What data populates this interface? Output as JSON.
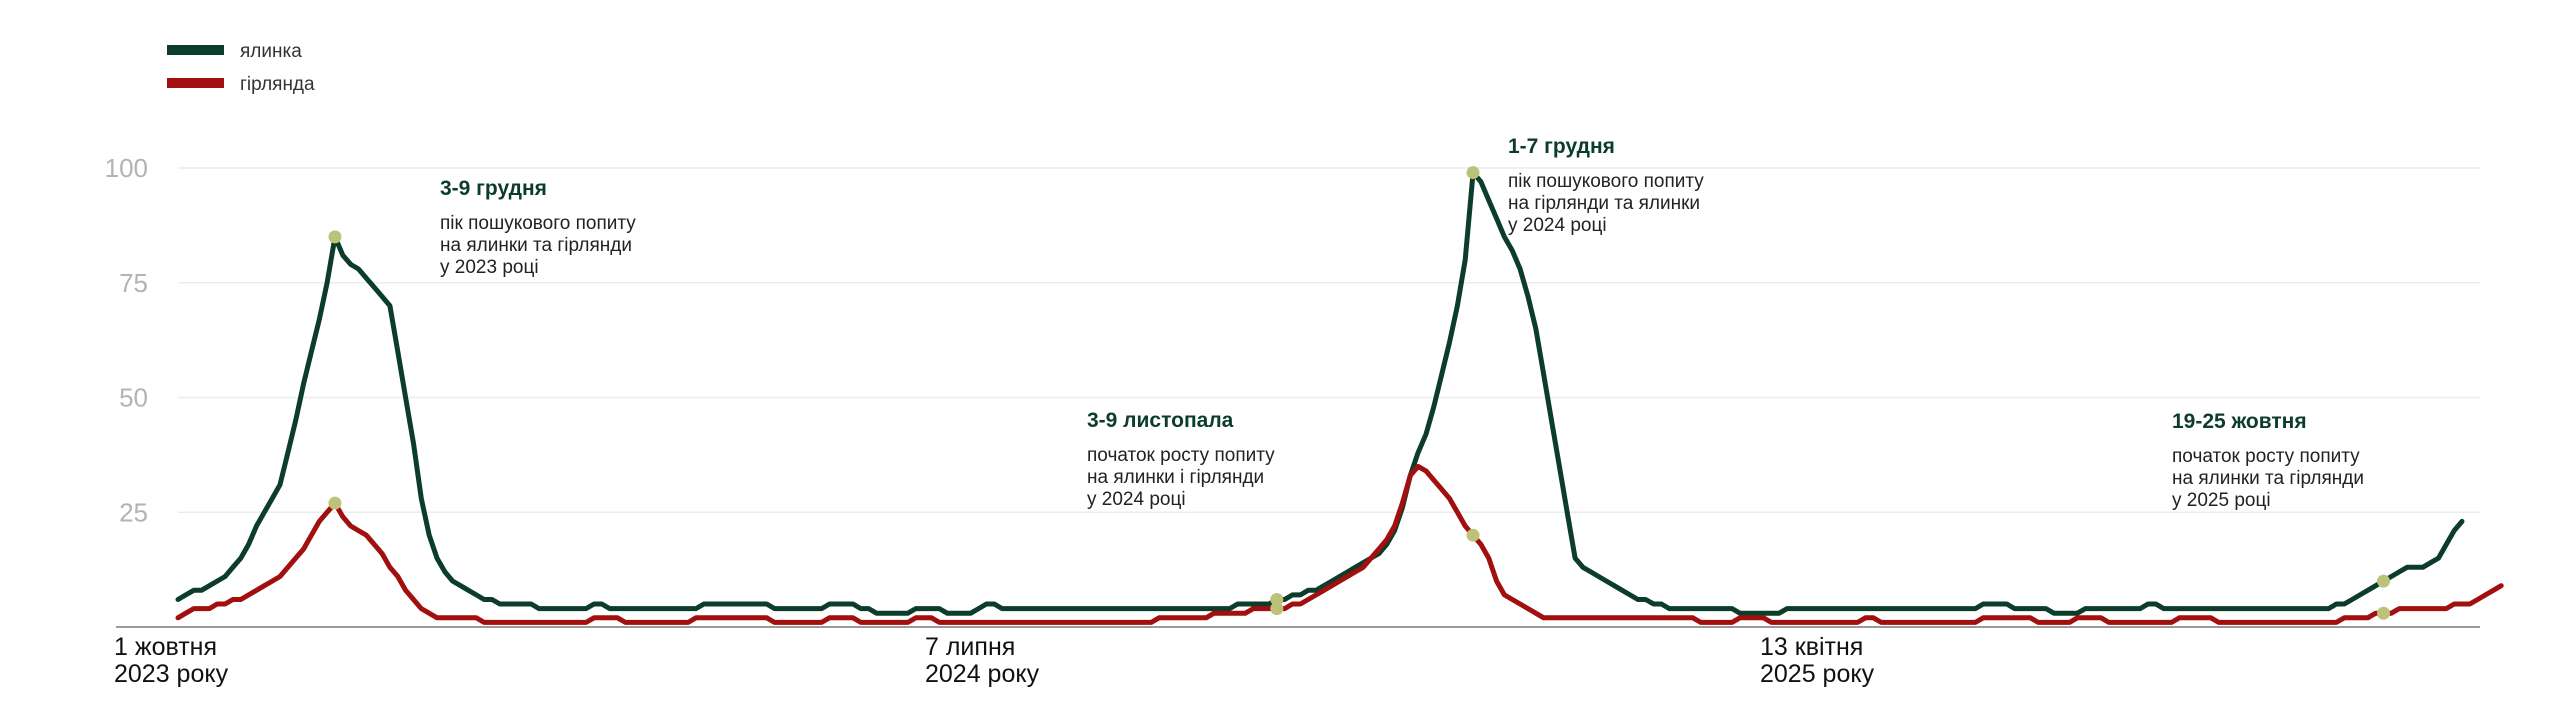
{
  "chart_data": {
    "type": "line",
    "ylim": [
      0,
      100
    ],
    "yticks": [
      "100",
      "75",
      "50",
      "25"
    ],
    "grid": true,
    "legend_position": "top-left",
    "x_start_label": [
      "1 жовтня",
      "2023 року"
    ],
    "x_tick_labels": [
      [
        "1 жовтня",
        "2023 року"
      ],
      [
        "7 липня",
        "2024 року"
      ],
      [
        "13 квітня",
        "2025 року"
      ]
    ],
    "series": [
      {
        "name": "ялинка",
        "color": "#0b3d2a",
        "values": [
          6,
          7,
          8,
          8,
          9,
          10,
          11,
          13,
          15,
          18,
          22,
          25,
          28,
          31,
          38,
          45,
          53,
          60,
          67,
          75,
          85,
          81,
          79,
          78,
          76,
          74,
          72,
          70,
          60,
          50,
          40,
          28,
          20,
          15,
          12,
          10,
          9,
          8,
          7,
          6,
          6,
          5,
          5,
          5,
          5,
          5,
          4,
          4,
          4,
          4,
          4,
          4,
          4,
          5,
          5,
          4,
          4,
          4,
          4,
          4,
          4,
          4,
          4,
          4,
          4,
          4,
          4,
          5,
          5,
          5,
          5,
          5,
          5,
          5,
          5,
          5,
          4,
          4,
          4,
          4,
          4,
          4,
          4,
          5,
          5,
          5,
          5,
          4,
          4,
          3,
          3,
          3,
          3,
          3,
          4,
          4,
          4,
          4,
          3,
          3,
          3,
          3,
          4,
          5,
          5,
          4,
          4,
          4,
          4,
          4,
          4,
          4,
          4,
          4,
          4,
          4,
          4,
          4,
          4,
          4,
          4,
          4,
          4,
          4,
          4,
          4,
          4,
          4,
          4,
          4,
          4,
          4,
          4,
          4,
          4,
          5,
          5,
          5,
          5,
          5,
          6,
          6,
          7,
          7,
          8,
          8,
          9,
          10,
          11,
          12,
          13,
          14,
          15,
          16,
          18,
          21,
          26,
          33,
          38,
          42,
          48,
          55,
          62,
          70,
          80,
          99,
          97,
          93,
          89,
          85,
          82,
          78,
          72,
          65,
          55,
          45,
          35,
          25,
          15,
          13,
          12,
          11,
          10,
          9,
          8,
          7,
          6,
          6,
          5,
          5,
          4,
          4,
          4,
          4,
          4,
          4,
          4,
          4,
          4,
          3,
          3,
          3,
          3,
          3,
          3,
          4,
          4,
          4,
          4,
          4,
          4,
          4,
          4,
          4,
          4,
          4,
          4,
          4,
          4,
          4,
          4,
          4,
          4,
          4,
          4,
          4,
          4,
          4,
          4,
          4,
          5,
          5,
          5,
          5,
          4,
          4,
          4,
          4,
          4,
          3,
          3,
          3,
          3,
          4,
          4,
          4,
          4,
          4,
          4,
          4,
          4,
          5,
          5,
          4,
          4,
          4,
          4,
          4,
          4,
          4,
          4,
          4,
          4,
          4,
          4,
          4,
          4,
          4,
          4,
          4,
          4,
          4,
          4,
          4,
          4,
          5,
          5,
          6,
          7,
          8,
          9,
          10,
          11,
          12,
          13,
          13,
          13,
          14,
          15,
          18,
          21,
          23
        ]
      },
      {
        "name": "гірлянда",
        "color": "#a10f0f",
        "values": [
          2,
          3,
          4,
          4,
          4,
          5,
          5,
          6,
          6,
          7,
          8,
          9,
          10,
          11,
          13,
          15,
          17,
          20,
          23,
          25,
          27,
          24,
          22,
          21,
          20,
          18,
          16,
          13,
          11,
          8,
          6,
          4,
          3,
          2,
          2,
          2,
          2,
          2,
          2,
          1,
          1,
          1,
          1,
          1,
          1,
          1,
          1,
          1,
          1,
          1,
          1,
          1,
          1,
          2,
          2,
          2,
          2,
          1,
          1,
          1,
          1,
          1,
          1,
          1,
          1,
          1,
          2,
          2,
          2,
          2,
          2,
          2,
          2,
          2,
          2,
          2,
          1,
          1,
          1,
          1,
          1,
          1,
          1,
          2,
          2,
          2,
          2,
          1,
          1,
          1,
          1,
          1,
          1,
          1,
          2,
          2,
          2,
          1,
          1,
          1,
          1,
          1,
          1,
          1,
          1,
          1,
          1,
          1,
          1,
          1,
          1,
          1,
          1,
          1,
          1,
          1,
          1,
          1,
          1,
          1,
          1,
          1,
          1,
          1,
          1,
          2,
          2,
          2,
          2,
          2,
          2,
          2,
          3,
          3,
          3,
          3,
          3,
          4,
          4,
          4,
          4,
          4,
          5,
          5,
          6,
          7,
          8,
          9,
          10,
          11,
          12,
          13,
          15,
          17,
          19,
          22,
          27,
          33,
          35,
          34,
          32,
          30,
          28,
          25,
          22,
          20,
          18,
          15,
          10,
          7,
          6,
          5,
          4,
          3,
          2,
          2,
          2,
          2,
          2,
          2,
          2,
          2,
          2,
          2,
          2,
          2,
          2,
          2,
          2,
          2,
          2,
          2,
          2,
          2,
          1,
          1,
          1,
          1,
          1,
          2,
          2,
          2,
          2,
          1,
          1,
          1,
          1,
          1,
          1,
          1,
          1,
          1,
          1,
          1,
          1,
          2,
          2,
          1,
          1,
          1,
          1,
          1,
          1,
          1,
          1,
          1,
          1,
          1,
          1,
          1,
          2,
          2,
          2,
          2,
          2,
          2,
          2,
          1,
          1,
          1,
          1,
          1,
          2,
          2,
          2,
          2,
          1,
          1,
          1,
          1,
          1,
          1,
          1,
          1,
          1,
          2,
          2,
          2,
          2,
          2,
          1,
          1,
          1,
          1,
          1,
          1,
          1,
          1,
          1,
          1,
          1,
          1,
          1,
          1,
          1,
          1,
          2,
          2,
          2,
          2,
          3,
          3,
          3,
          4,
          4,
          4,
          4,
          4,
          4,
          4,
          5,
          5,
          5,
          6,
          7,
          8,
          9
        ]
      }
    ],
    "annotations": [
      {
        "title": "3-9 грудня",
        "lines": [
          "пік пошукового попиту",
          "на ялинки та гірлянди",
          "у 2023 році"
        ]
      },
      {
        "title": "3-9 листопала",
        "lines": [
          "початок росту попиту",
          "на ялинки і гірлянди",
          "у 2024 році"
        ]
      },
      {
        "title": "1-7 грудня",
        "lines": [
          "пік пошукового попиту",
          "на гірлянди та ялинки",
          "у 2024 році"
        ]
      },
      {
        "title": "19-25 жовтня",
        "lines": [
          "початок росту попиту",
          "на ялинки та гірлянди",
          "у 2025 році"
        ]
      }
    ],
    "marker_color": "#bcc27a",
    "axis_color": "#9a9a9a",
    "grid_color": "#ececec"
  }
}
